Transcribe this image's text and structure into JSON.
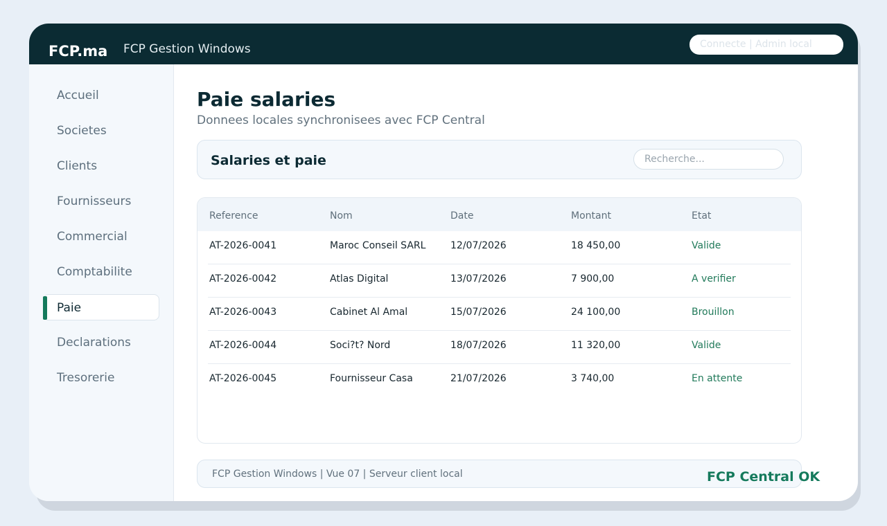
{
  "header": {
    "brand": "FCP.ma",
    "app_title": "FCP Gestion Windows",
    "status_text": "Connecte  |  Admin local"
  },
  "sidebar": {
    "items": [
      {
        "label": "Accueil",
        "active": false
      },
      {
        "label": "Societes",
        "active": false
      },
      {
        "label": "Clients",
        "active": false
      },
      {
        "label": "Fournisseurs",
        "active": false
      },
      {
        "label": "Commercial",
        "active": false
      },
      {
        "label": "Comptabilite",
        "active": false
      },
      {
        "label": "Paie",
        "active": true
      },
      {
        "label": "Declarations",
        "active": false
      },
      {
        "label": "Tresorerie",
        "active": false
      }
    ]
  },
  "main": {
    "title": "Paie salaries",
    "subtitle": "Donnees locales synchronisees avec FCP Central",
    "section_title": "Salaries et paie",
    "search": {
      "placeholder": "Recherche...",
      "value": ""
    },
    "table": {
      "columns": [
        "Reference",
        "Nom",
        "Date",
        "Montant",
        "Etat"
      ],
      "rows": [
        [
          "AT-2026-0041",
          "Maroc Conseil SARL",
          "12/07/2026",
          "18 450,00",
          "Valide"
        ],
        [
          "AT-2026-0042",
          "Atlas Digital",
          "13/07/2026",
          "7 900,00",
          "A verifier"
        ],
        [
          "AT-2026-0043",
          "Cabinet Al Amal",
          "15/07/2026",
          "24 100,00",
          "Brouillon"
        ],
        [
          "AT-2026-0044",
          "Soci?t? Nord",
          "18/07/2026",
          "11 320,00",
          "Valide"
        ],
        [
          "AT-2026-0045",
          "Fournisseur Casa",
          "21/07/2026",
          "3 740,00",
          "En attente"
        ]
      ]
    }
  },
  "footer": {
    "text": "FCP Gestion Windows  |  Vue 07  |  Serveur client local",
    "central_status": "FCP Central OK"
  },
  "colors": {
    "header_bg": "#0b2b33",
    "accent": "#157a5c",
    "state_text": "#217a5a",
    "page_bg": "#e8eff7"
  }
}
